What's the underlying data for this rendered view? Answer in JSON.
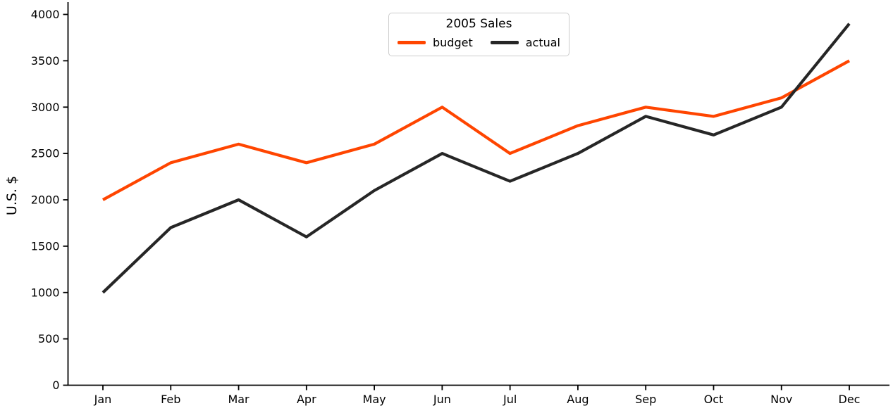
{
  "chart_data": {
    "type": "line",
    "title": "2005 Sales",
    "xlabel": "",
    "ylabel": "U.S. $",
    "categories": [
      "Jan",
      "Feb",
      "Mar",
      "Apr",
      "May",
      "Jun",
      "Jul",
      "Aug",
      "Sep",
      "Oct",
      "Nov",
      "Dec"
    ],
    "series": [
      {
        "name": "budget",
        "color": "#FF4500",
        "values": [
          2000,
          2400,
          2600,
          2400,
          2600,
          3000,
          2500,
          2800,
          3000,
          2900,
          3100,
          3500
        ]
      },
      {
        "name": "actual",
        "color": "#262626",
        "values": [
          1000,
          1700,
          2000,
          1600,
          2100,
          2500,
          2200,
          2500,
          2900,
          2700,
          3000,
          3900
        ]
      }
    ],
    "ylim": [
      0,
      4000
    ],
    "yticks": [
      0,
      500,
      1000,
      1500,
      2000,
      2500,
      3000,
      3500,
      4000
    ],
    "grid": false,
    "legend": {
      "title": "2005 Sales",
      "position": "top-center"
    },
    "axis_color": "#000000",
    "background": "#ffffff"
  }
}
